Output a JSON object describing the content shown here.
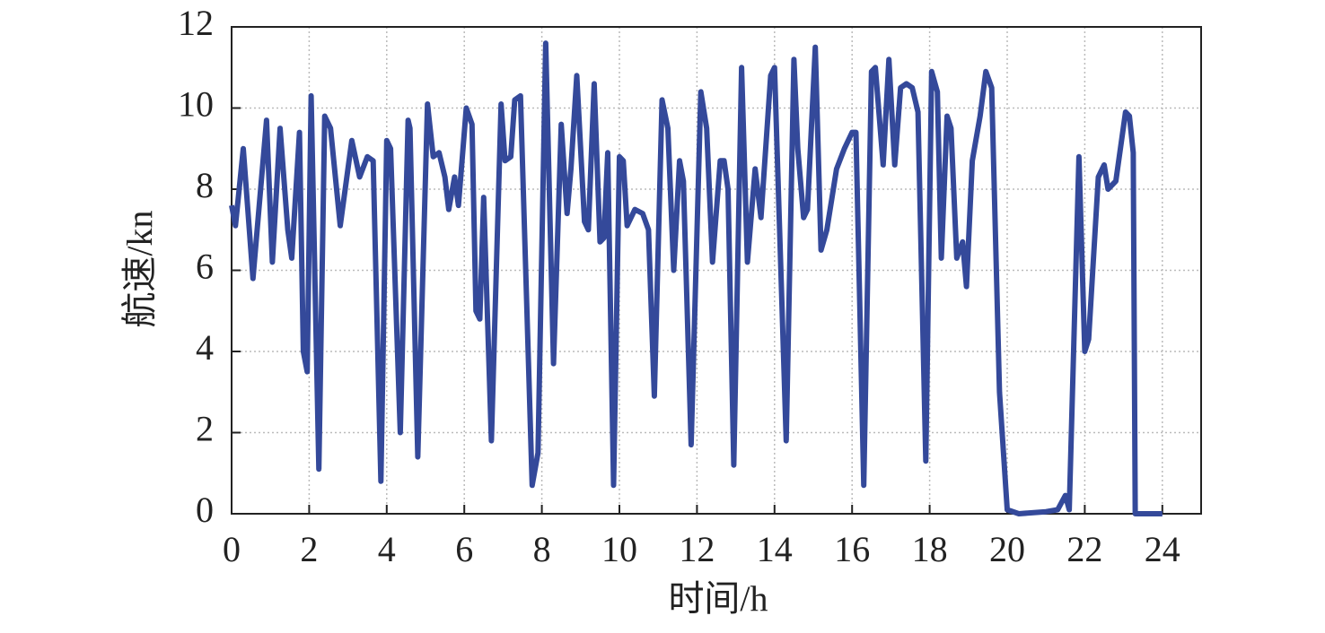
{
  "chart_data": {
    "type": "line",
    "x_label": "时间/h",
    "y_label": "航速/kn",
    "xlim": [
      0,
      25
    ],
    "xticks": [
      0,
      2,
      4,
      6,
      8,
      10,
      12,
      14,
      16,
      18,
      20,
      22,
      24
    ],
    "ylim": [
      0,
      12
    ],
    "yticks": [
      0,
      2,
      4,
      6,
      8,
      10,
      12
    ],
    "grid": true,
    "series": [
      {
        "name": "航速",
        "color": "#34499a",
        "x": [
          0,
          0.1,
          0.3,
          0.55,
          0.9,
          1.05,
          1.25,
          1.45,
          1.55,
          1.75,
          1.85,
          1.95,
          2.05,
          2.25,
          2.4,
          2.55,
          2.8,
          3.1,
          3.3,
          3.5,
          3.65,
          3.85,
          4.0,
          4.1,
          4.35,
          4.55,
          4.6,
          4.8,
          5.05,
          5.2,
          5.35,
          5.5,
          5.6,
          5.75,
          5.85,
          6.05,
          6.2,
          6.3,
          6.4,
          6.5,
          6.7,
          6.95,
          7.05,
          7.2,
          7.3,
          7.45,
          7.75,
          7.9,
          8.1,
          8.3,
          8.5,
          8.65,
          8.75,
          8.9,
          9.1,
          9.2,
          9.35,
          9.5,
          9.6,
          9.7,
          9.85,
          10.0,
          10.1,
          10.2,
          10.4,
          10.6,
          10.75,
          10.9,
          11.1,
          11.25,
          11.4,
          11.55,
          11.65,
          11.85,
          12.1,
          12.25,
          12.4,
          12.6,
          12.7,
          12.8,
          12.95,
          13.15,
          13.3,
          13.5,
          13.65,
          13.9,
          14.0,
          14.3,
          14.5,
          14.6,
          14.75,
          14.85,
          15.05,
          15.2,
          15.35,
          15.6,
          15.8,
          16.0,
          16.1,
          16.3,
          16.5,
          16.6,
          16.8,
          16.95,
          17.1,
          17.25,
          17.4,
          17.55,
          17.7,
          17.9,
          18.05,
          18.2,
          18.3,
          18.45,
          18.55,
          18.7,
          18.85,
          18.95,
          19.1,
          19.3,
          19.45,
          19.6,
          19.8,
          20.0,
          20.3,
          21.0,
          21.3,
          21.5,
          21.6,
          21.85,
          22.0,
          22.1,
          22.35,
          22.5,
          22.6,
          22.8,
          23.05,
          23.15,
          23.25,
          23.3,
          24.0
        ],
        "values": [
          7.6,
          7.1,
          9.0,
          5.8,
          9.7,
          6.2,
          9.5,
          7.0,
          6.3,
          9.4,
          4.0,
          3.5,
          10.3,
          1.1,
          9.8,
          9.5,
          7.1,
          9.2,
          8.3,
          8.8,
          8.7,
          0.8,
          9.2,
          9.0,
          2.0,
          9.7,
          9.5,
          1.4,
          10.1,
          8.8,
          8.9,
          8.3,
          7.5,
          8.3,
          7.6,
          10.0,
          9.6,
          5.0,
          4.8,
          7.8,
          1.8,
          10.1,
          8.7,
          8.8,
          10.2,
          10.3,
          0.7,
          1.5,
          11.6,
          3.7,
          9.6,
          7.4,
          8.5,
          10.8,
          7.2,
          7.0,
          10.6,
          6.7,
          6.8,
          8.9,
          0.7,
          8.8,
          8.7,
          7.1,
          7.5,
          7.4,
          7.0,
          2.9,
          10.2,
          9.5,
          6.0,
          8.7,
          8.2,
          1.7,
          10.4,
          9.5,
          6.2,
          8.7,
          8.7,
          8.0,
          1.2,
          11.0,
          6.2,
          8.5,
          7.3,
          10.8,
          11.0,
          1.8,
          11.2,
          9.0,
          7.3,
          7.5,
          11.5,
          6.5,
          7.0,
          8.5,
          9.0,
          9.4,
          9.4,
          0.7,
          10.9,
          11.0,
          8.6,
          11.2,
          8.6,
          10.5,
          10.6,
          10.5,
          9.9,
          1.3,
          10.9,
          10.4,
          6.3,
          9.8,
          9.5,
          6.3,
          6.7,
          5.6,
          8.7,
          9.8,
          10.9,
          10.5,
          3.0,
          0.1,
          0.0,
          0.05,
          0.1,
          0.45,
          0.1,
          8.8,
          4.0,
          4.3,
          8.3,
          8.6,
          8.0,
          8.2,
          9.9,
          9.8,
          8.9,
          0.0,
          0.0
        ]
      }
    ]
  }
}
